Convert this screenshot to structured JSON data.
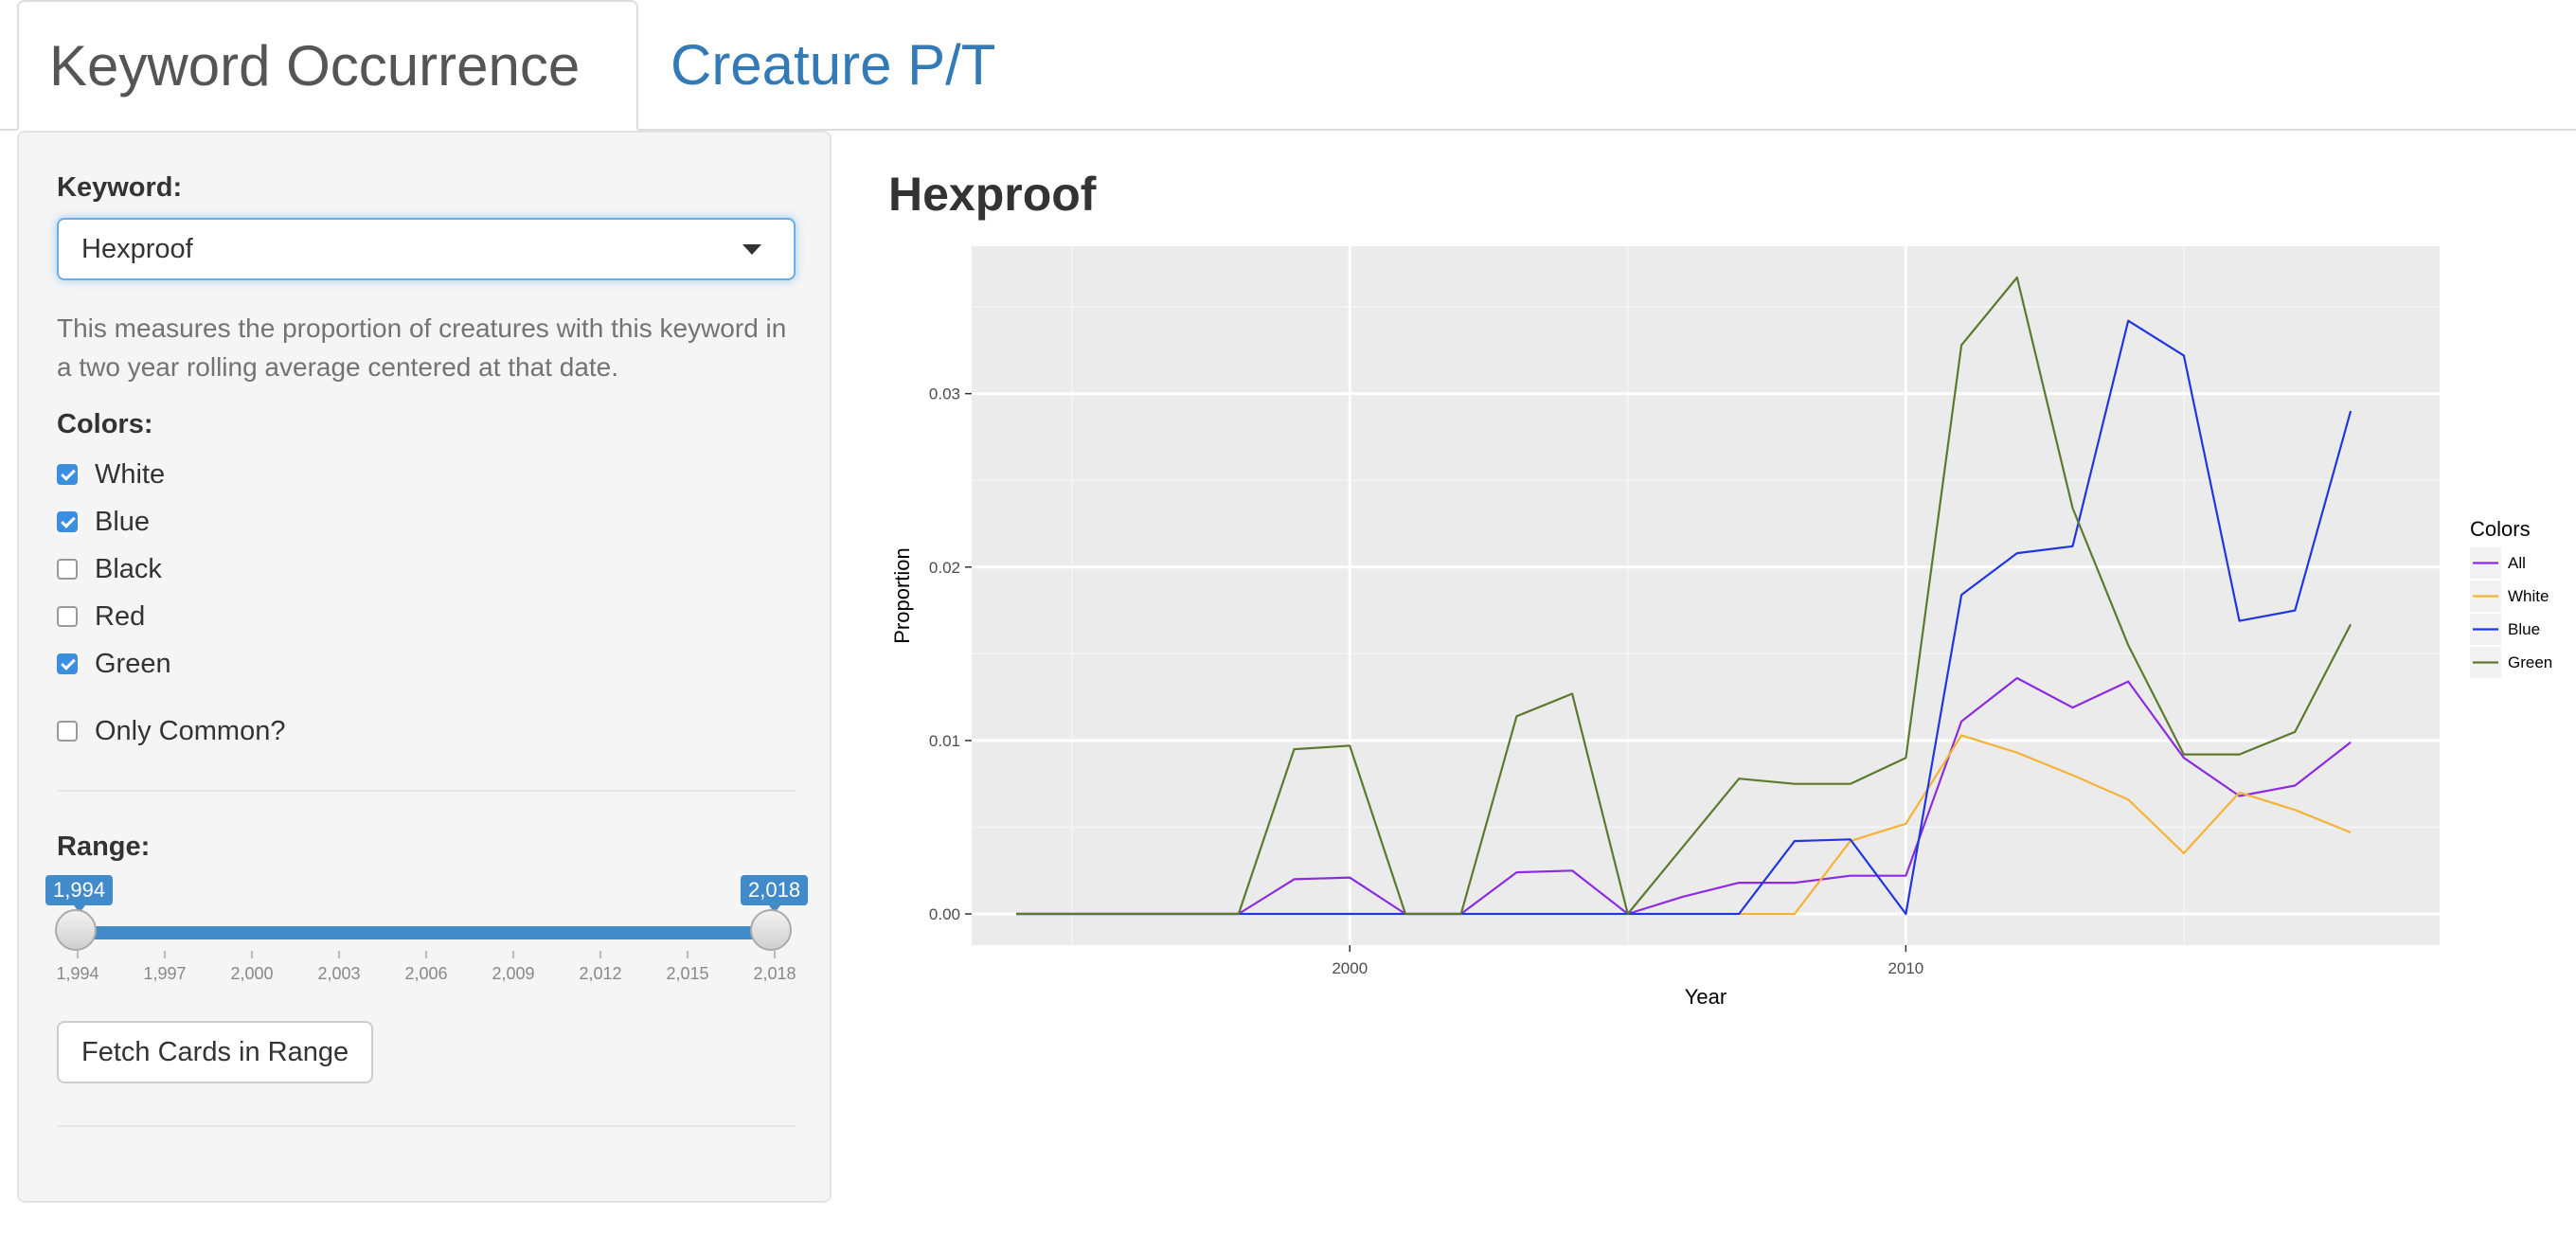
{
  "tabs": [
    {
      "label": "Keyword Occurrence",
      "active": true
    },
    {
      "label": "Creature P/T",
      "active": false
    }
  ],
  "sidebar": {
    "keyword_label": "Keyword:",
    "keyword_value": "Hexproof",
    "help_text": "This measures the proportion of creatures with this keyword in a two year rolling average centered at that date.",
    "colors_label": "Colors:",
    "colors": [
      {
        "label": "White",
        "checked": true
      },
      {
        "label": "Blue",
        "checked": true
      },
      {
        "label": "Black",
        "checked": false
      },
      {
        "label": "Red",
        "checked": false
      },
      {
        "label": "Green",
        "checked": true
      }
    ],
    "only_common_label": "Only Common?",
    "only_common_checked": false,
    "range_label": "Range:",
    "range": {
      "min": 1994,
      "max": 2018,
      "from": 1994,
      "to": 2018,
      "from_label": "1,994",
      "to_label": "2,018",
      "grid_labels": [
        "1,994",
        "1,997",
        "2,000",
        "2,003",
        "2,006",
        "2,009",
        "2,012",
        "2,015",
        "2,018"
      ]
    },
    "fetch_button": "Fetch Cards in Range"
  },
  "main": {
    "title": "Hexproof"
  },
  "chart_data": {
    "type": "line",
    "title": "Hexproof",
    "xlabel": "Year",
    "ylabel": "Proportion",
    "xlim": [
      1993.2,
      2019.6
    ],
    "ylim": [
      -0.0018,
      0.0385
    ],
    "x_ticks": [
      2000,
      2010
    ],
    "x_tick_labels": [
      "2000",
      "2010"
    ],
    "y_ticks": [
      0.0,
      0.01,
      0.02,
      0.03
    ],
    "y_tick_labels": [
      "0.00",
      "0.01",
      "0.02",
      "0.03"
    ],
    "grid": true,
    "legend": {
      "title": "Colors",
      "position": "right"
    },
    "series": [
      {
        "name": "All",
        "color": "#8c2be2",
        "x": [
          1994,
          1995,
          1996,
          1997,
          1998,
          1999,
          2000,
          2001,
          2002,
          2003,
          2004,
          2005,
          2006,
          2007,
          2008,
          2009,
          2010,
          2011,
          2012,
          2013,
          2014,
          2015,
          2016,
          2017,
          2018
        ],
        "y": [
          0,
          0,
          0,
          0,
          0,
          0.002,
          0.0021,
          0,
          0,
          0.0024,
          0.0025,
          0,
          0.001,
          0.0018,
          0.0018,
          0.0022,
          0.0022,
          0.0111,
          0.0136,
          0.0119,
          0.0134,
          0.009,
          0.0068,
          0.0074,
          0.0099
        ]
      },
      {
        "name": "White",
        "color": "#f5b335",
        "x": [
          2007,
          2008,
          2009,
          2010,
          2011,
          2012,
          2013,
          2014,
          2015,
          2016,
          2017,
          2018
        ],
        "y": [
          0,
          0,
          0.0042,
          0.0052,
          0.0103,
          0.0093,
          0.008,
          0.0066,
          0.0035,
          0.007,
          0.006,
          0.0047
        ]
      },
      {
        "name": "Blue",
        "color": "#1f36e0",
        "x": [
          1994,
          1995,
          1996,
          1997,
          1998,
          1999,
          2000,
          2001,
          2002,
          2003,
          2004,
          2005,
          2006,
          2007,
          2008,
          2009,
          2010,
          2011,
          2012,
          2013,
          2014,
          2015,
          2016,
          2017,
          2018
        ],
        "y": [
          0,
          0,
          0,
          0,
          0,
          0,
          0,
          0,
          0,
          0,
          0,
          0,
          0,
          0,
          0.0042,
          0.0043,
          0,
          0.0184,
          0.0208,
          0.0212,
          0.0342,
          0.0322,
          0.0169,
          0.0175,
          0.029
        ]
      },
      {
        "name": "Green",
        "color": "#5c7a2e",
        "x": [
          1994,
          1995,
          1996,
          1997,
          1998,
          1999,
          2000,
          2001,
          2002,
          2003,
          2004,
          2005,
          2006,
          2007,
          2008,
          2009,
          2010,
          2011,
          2012,
          2013,
          2014,
          2015,
          2016,
          2017,
          2018
        ],
        "y": [
          0,
          0,
          0,
          0,
          0,
          0.0095,
          0.0097,
          0,
          0,
          0.0114,
          0.0127,
          0,
          0.0039,
          0.0078,
          0.0075,
          0.0075,
          0.009,
          0.0328,
          0.0367,
          0.0234,
          0.0155,
          0.0092,
          0.0092,
          0.0105,
          0.0167
        ]
      }
    ]
  }
}
